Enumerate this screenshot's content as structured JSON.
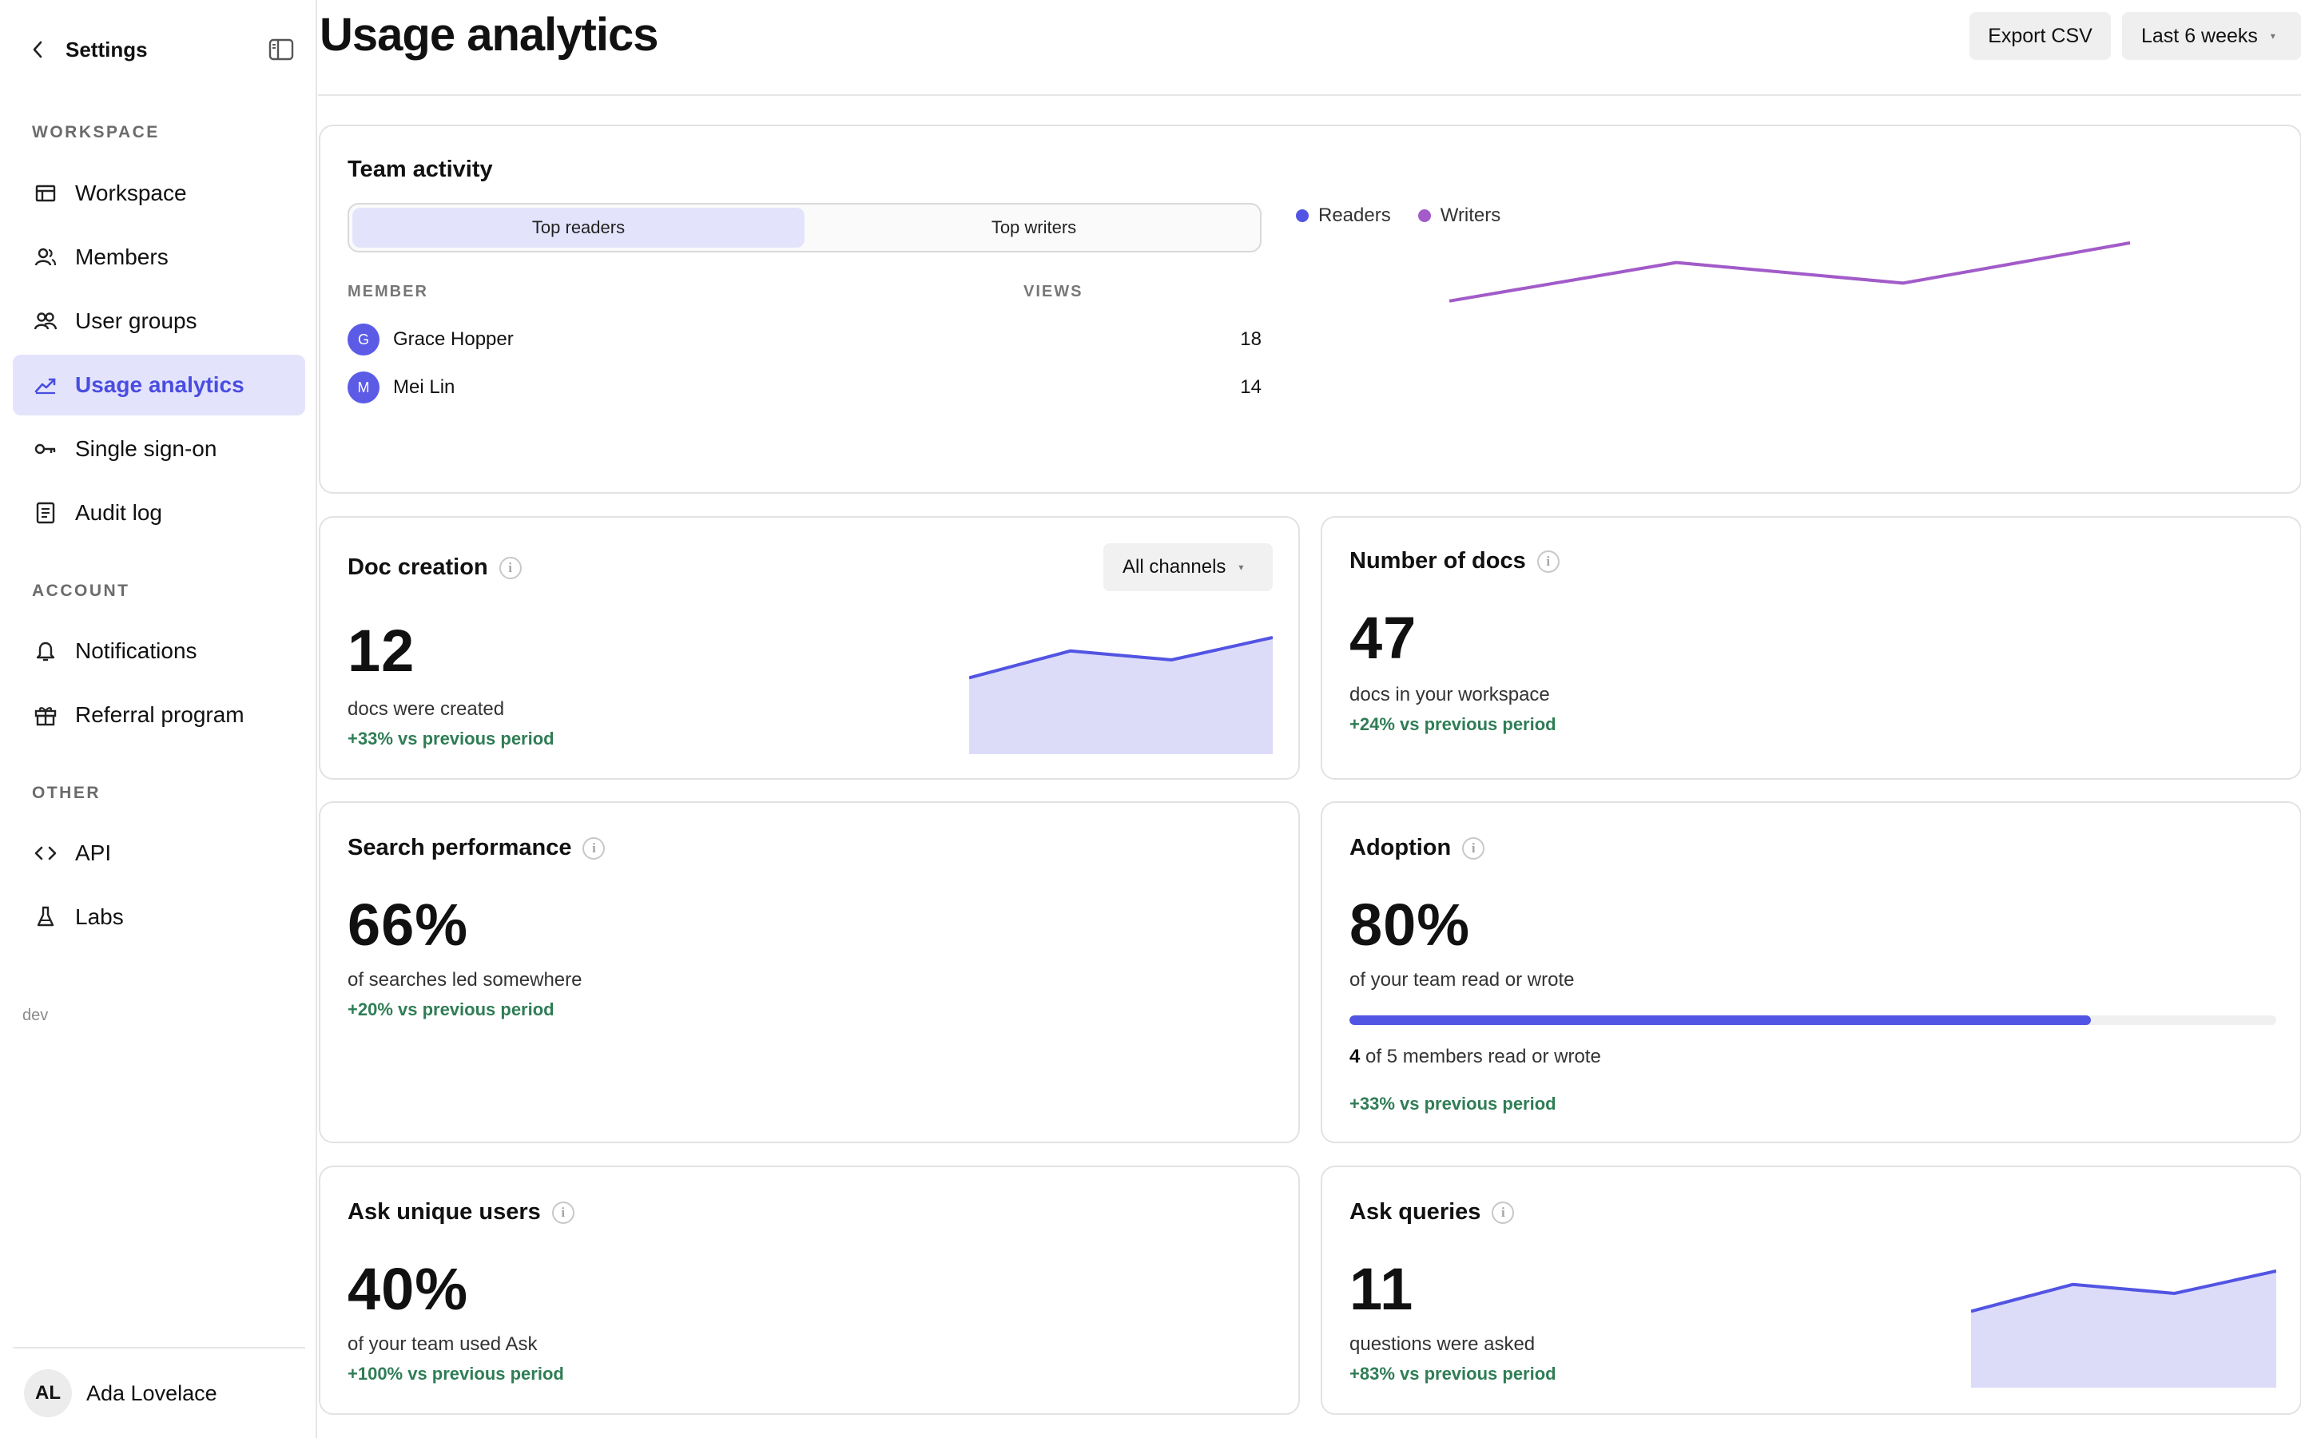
{
  "sidebar": {
    "title": "Settings",
    "sections": {
      "workspace": "WORKSPACE",
      "account": "ACCOUNT",
      "other": "OTHER"
    },
    "items": [
      {
        "label": "Workspace",
        "icon": "workspace-icon"
      },
      {
        "label": "Members",
        "icon": "members-icon"
      },
      {
        "label": "User groups",
        "icon": "user-groups-icon"
      },
      {
        "label": "Usage analytics",
        "icon": "analytics-icon",
        "active": true
      },
      {
        "label": "Single sign-on",
        "icon": "key-icon"
      },
      {
        "label": "Audit log",
        "icon": "audit-log-icon"
      },
      {
        "label": "Notifications",
        "icon": "bell-icon"
      },
      {
        "label": "Referral program",
        "icon": "gift-icon"
      },
      {
        "label": "API",
        "icon": "code-icon"
      },
      {
        "label": "Labs",
        "icon": "flask-icon"
      }
    ],
    "env": "dev",
    "user": {
      "initials": "AL",
      "name": "Ada Lovelace"
    }
  },
  "header": {
    "title": "Usage analytics",
    "export_label": "Export CSV",
    "range_label": "Last 6 weeks"
  },
  "colors": {
    "accent": "#5254e3",
    "accent_soft": "#dcdcf9",
    "writers": "#a25bc9",
    "positive": "#2f7d55"
  },
  "team_activity": {
    "title": "Team activity",
    "tabs": [
      "Top readers",
      "Top writers"
    ],
    "selected_tab": "Top readers",
    "columns": {
      "member": "MEMBER",
      "views": "VIEWS"
    },
    "rows": [
      {
        "initial": "G",
        "name": "Grace Hopper",
        "views": "18"
      },
      {
        "initial": "M",
        "name": "Mei Lin",
        "views": "14"
      }
    ],
    "legend": {
      "readers": "Readers",
      "writers": "Writers"
    }
  },
  "doc_creation": {
    "title": "Doc creation",
    "filter": "All channels",
    "value": "12",
    "caption": "docs were created",
    "delta": "+33% vs previous period"
  },
  "number_of_docs": {
    "title": "Number of docs",
    "value": "47",
    "caption": "docs in your workspace",
    "delta": "+24% vs previous period"
  },
  "search_performance": {
    "title": "Search performance",
    "value": "66%",
    "caption": "of searches led somewhere",
    "delta": "+20% vs previous period"
  },
  "adoption": {
    "title": "Adoption",
    "value": "80%",
    "caption": "of your team read or wrote",
    "progress": 0.8,
    "members_count": "4",
    "members_text": "of 5 members read or wrote",
    "delta": "+33% vs previous period"
  },
  "ask_unique_users": {
    "title": "Ask unique users",
    "value": "40%",
    "caption": "of your team used Ask",
    "delta": "+100% vs previous period"
  },
  "ask_queries": {
    "title": "Ask queries",
    "value": "11",
    "caption": "questions were asked",
    "delta": "+83% vs previous period"
  },
  "chart_data": [
    {
      "type": "line",
      "series": [
        {
          "name": "Writers",
          "values": [
            0.35,
            0.78,
            0.55,
            1.0
          ]
        }
      ]
    },
    {
      "type": "area",
      "values": [
        0.55,
        0.85,
        0.75,
        1.0
      ]
    },
    {
      "type": "area",
      "values": [
        0.55,
        0.85,
        0.75,
        1.0
      ]
    }
  ]
}
